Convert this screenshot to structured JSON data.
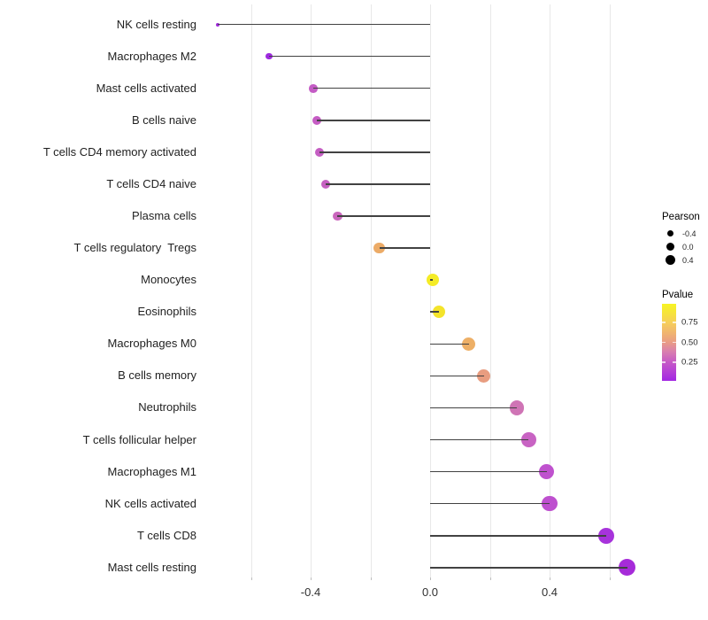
{
  "chart_data": {
    "type": "lollipop",
    "title": "",
    "xlabel": "",
    "ylabel": "",
    "xlim": [
      -0.778,
      0.728
    ],
    "grid": "vertical-only",
    "x_gridline_values": [
      -0.6,
      -0.4,
      -0.2,
      0.0,
      0.2,
      0.4,
      0.6
    ],
    "x_ticks": [
      {
        "value": -0.4,
        "label": "-0.4"
      },
      {
        "value": 0.0,
        "label": "0.0"
      },
      {
        "value": 0.4,
        "label": "0.4"
      }
    ],
    "rows": [
      {
        "label": "NK cells resting",
        "pearson": -0.71,
        "pvalue": 0.02,
        "color": "#A02BDC"
      },
      {
        "label": "Macrophages M2",
        "pearson": -0.54,
        "pvalue": 0.06,
        "color": "#9E2ADF"
      },
      {
        "label": "Mast cells activated",
        "pearson": -0.39,
        "pvalue": 0.21,
        "color": "#C45BC5"
      },
      {
        "label": "B cells naive",
        "pearson": -0.38,
        "pvalue": 0.22,
        "color": "#C55CC4"
      },
      {
        "label": "T cells CD4 memory activated",
        "pearson": -0.37,
        "pvalue": 0.23,
        "color": "#C55EC3"
      },
      {
        "label": "T cells CD4 naive",
        "pearson": -0.35,
        "pvalue": 0.25,
        "color": "#C660C1"
      },
      {
        "label": "Plasma cells",
        "pearson": -0.31,
        "pvalue": 0.3,
        "color": "#CA67BD"
      },
      {
        "label": "T cells regulatory  Tregs",
        "pearson": -0.17,
        "pvalue": 0.62,
        "color": "#ECAB67"
      },
      {
        "label": "Monocytes",
        "pearson": 0.01,
        "pvalue": 0.95,
        "color": "#F5EC27"
      },
      {
        "label": "Eosinophils",
        "pearson": 0.03,
        "pvalue": 0.9,
        "color": "#F4E42B"
      },
      {
        "label": "Macrophages M0",
        "pearson": 0.13,
        "pvalue": 0.66,
        "color": "#EDAF66"
      },
      {
        "label": "B cells memory",
        "pearson": 0.18,
        "pvalue": 0.54,
        "color": "#E89D80"
      },
      {
        "label": "Neutrophils",
        "pearson": 0.29,
        "pvalue": 0.36,
        "color": "#CF74B5"
      },
      {
        "label": "T cells follicular helper",
        "pearson": 0.33,
        "pvalue": 0.28,
        "color": "#C863C3"
      },
      {
        "label": "Macrophages M1",
        "pearson": 0.39,
        "pvalue": 0.18,
        "color": "#BF52CE"
      },
      {
        "label": "NK cells activated",
        "pearson": 0.4,
        "pvalue": 0.18,
        "color": "#BE50CF"
      },
      {
        "label": "T cells CD8",
        "pearson": 0.59,
        "pvalue": 0.04,
        "color": "#A733DB"
      },
      {
        "label": "Mast cells resting",
        "pearson": 0.66,
        "pvalue": 0.03,
        "color": "#A62BD9"
      }
    ],
    "legend_pearson": {
      "title": "Pearson",
      "entries": [
        {
          "label": "-0.4",
          "value": -0.4
        },
        {
          "label": "0.0",
          "value": 0.0
        },
        {
          "label": "0.4",
          "value": 0.4
        }
      ]
    },
    "legend_pvalue": {
      "title": "Pvalue",
      "ticks": [
        {
          "label": "0.75",
          "frac_from_top": 0.244
        },
        {
          "label": "0.50",
          "frac_from_top": 0.5
        },
        {
          "label": "0.25",
          "frac_from_top": 0.756
        }
      ],
      "gradient_top_color": "#F7F424",
      "gradient_bottom_color": "#A226E3"
    },
    "colors": {
      "segment": "#424242",
      "gridline": "#E8E8E8",
      "axis_text": "#303030",
      "label_text": "#1F1F1F"
    }
  }
}
